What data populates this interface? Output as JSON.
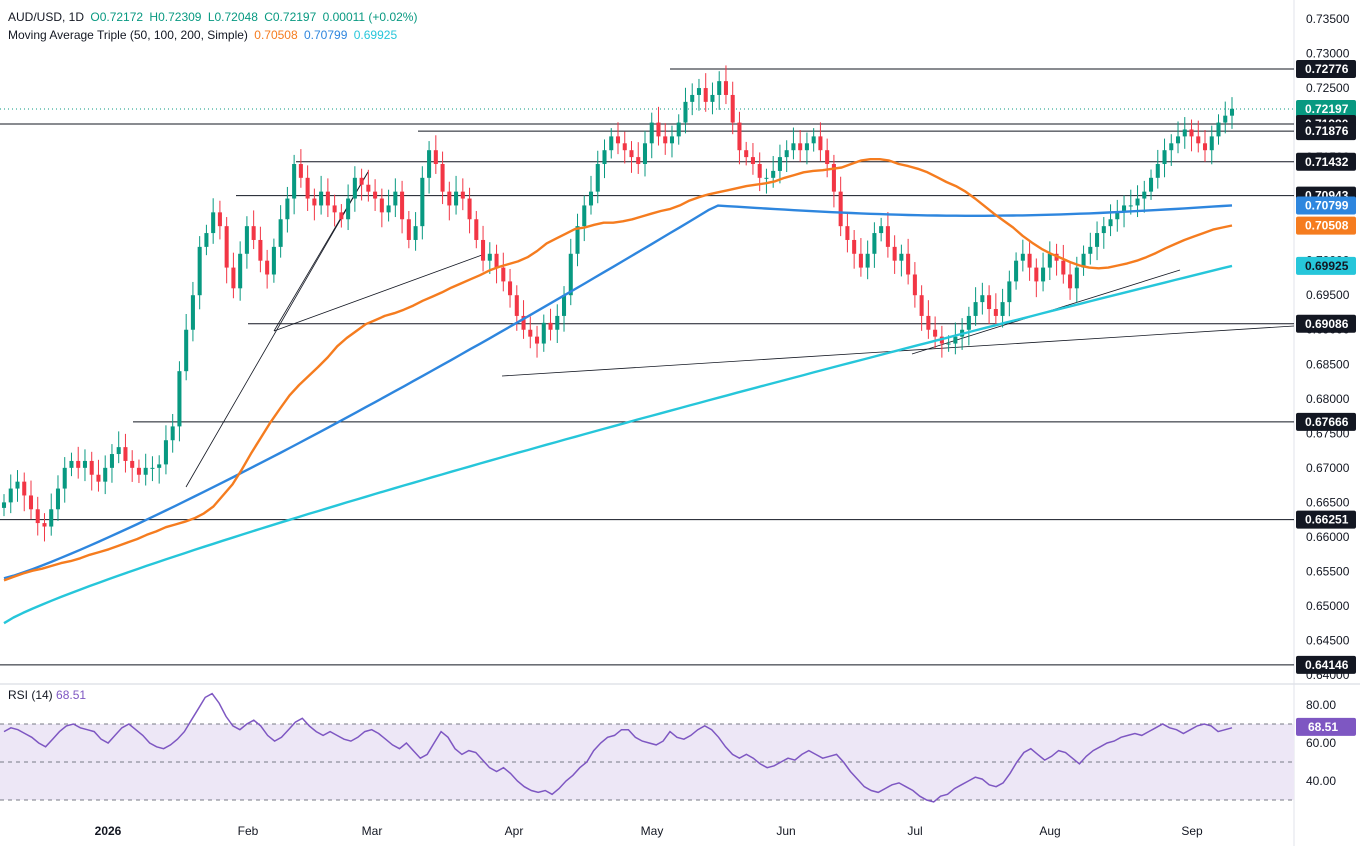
{
  "legend": {
    "symbol": "AUD/USD, 1D",
    "open": "O0.72172",
    "high": "H0.72309",
    "low": "L0.72048",
    "close": "C0.72197",
    "change": "0.00011 (+0.02%)",
    "ma_label": "Moving Average Triple (50, 100, 200, Simple)",
    "ma50": "0.70508",
    "ma100": "0.70799",
    "ma200": "0.69925",
    "rsi_label": "RSI (14)",
    "rsi_value": "68.51"
  },
  "colors": {
    "up": "#089981",
    "down": "#f23645",
    "ma50": "#f57c1f",
    "ma100": "#2e86de",
    "ma200": "#26c6da",
    "rsi": "#7e57c2",
    "rsi_band": "#ede7f6"
  },
  "chart_data": {
    "type": "candlestick",
    "title": "AUD/USD, 1D",
    "price_axis_ticks": [
      "0.73500",
      "0.73000",
      "0.72500",
      "0.72000",
      "0.71500",
      "0.71000",
      "0.70500",
      "0.70000",
      "0.69500",
      "0.69000",
      "0.68500",
      "0.68000",
      "0.67500",
      "0.67000",
      "0.66500",
      "0.66000",
      "0.65500",
      "0.65000",
      "0.64500",
      "0.64000"
    ],
    "x_tick_labels": [
      "2026",
      "Feb",
      "Mar",
      "Apr",
      "May",
      "Jun",
      "Jul",
      "Aug",
      "Sep"
    ],
    "ylim": [
      0.639,
      0.737
    ],
    "price_tags": [
      {
        "label": "0.72776",
        "value": 0.72776,
        "kind": "level"
      },
      {
        "label": "0.72197",
        "value": 0.72197,
        "kind": "last"
      },
      {
        "label": "0.71980",
        "value": 0.7198,
        "kind": "level"
      },
      {
        "label": "0.71876",
        "value": 0.71876,
        "kind": "level"
      },
      {
        "label": "0.71432",
        "value": 0.71432,
        "kind": "level"
      },
      {
        "label": "0.70943",
        "value": 0.70943,
        "kind": "level"
      },
      {
        "label": "0.70799",
        "value": 0.70799,
        "kind": "ma100"
      },
      {
        "label": "0.70508",
        "value": 0.70508,
        "kind": "ma50"
      },
      {
        "label": "0.69925",
        "value": 0.69925,
        "kind": "ma200"
      },
      {
        "label": "0.69086",
        "value": 0.69086,
        "kind": "level"
      },
      {
        "label": "0.67666",
        "value": 0.67666,
        "kind": "level"
      },
      {
        "label": "0.66251",
        "value": 0.66251,
        "kind": "level"
      },
      {
        "label": "0.64146",
        "value": 0.64146,
        "kind": "level"
      }
    ],
    "closes": [
      0.665,
      0.667,
      0.668,
      0.666,
      0.664,
      0.662,
      0.6615,
      0.664,
      0.667,
      0.67,
      0.671,
      0.67,
      0.671,
      0.669,
      0.668,
      0.67,
      0.672,
      0.673,
      0.671,
      0.67,
      0.669,
      0.67,
      0.67,
      0.6705,
      0.674,
      0.676,
      0.684,
      0.69,
      0.695,
      0.702,
      0.704,
      0.707,
      0.705,
      0.699,
      0.696,
      0.701,
      0.705,
      0.703,
      0.7,
      0.698,
      0.702,
      0.706,
      0.709,
      0.714,
      0.712,
      0.709,
      0.708,
      0.71,
      0.708,
      0.707,
      0.706,
      0.709,
      0.712,
      0.711,
      0.71,
      0.709,
      0.707,
      0.708,
      0.71,
      0.706,
      0.703,
      0.705,
      0.712,
      0.716,
      0.714,
      0.71,
      0.708,
      0.71,
      0.709,
      0.706,
      0.703,
      0.7,
      0.701,
      0.699,
      0.697,
      0.695,
      0.692,
      0.69,
      0.689,
      0.688,
      0.691,
      0.69,
      0.692,
      0.695,
      0.701,
      0.705,
      0.708,
      0.71,
      0.714,
      0.716,
      0.718,
      0.717,
      0.716,
      0.715,
      0.714,
      0.717,
      0.72,
      0.718,
      0.717,
      0.718,
      0.72,
      0.723,
      0.724,
      0.725,
      0.723,
      0.724,
      0.726,
      0.724,
      0.72,
      0.716,
      0.715,
      0.714,
      0.712,
      0.712,
      0.713,
      0.715,
      0.716,
      0.717,
      0.716,
      0.717,
      0.718,
      0.716,
      0.714,
      0.71,
      0.705,
      0.703,
      0.701,
      0.699,
      0.701,
      0.704,
      0.705,
      0.702,
      0.7,
      0.701,
      0.698,
      0.695,
      0.692,
      0.69,
      0.689,
      0.688,
      0.688,
      0.689,
      0.69,
      0.692,
      0.694,
      0.695,
      0.693,
      0.692,
      0.694,
      0.697,
      0.7,
      0.701,
      0.699,
      0.697,
      0.699,
      0.701,
      0.7,
      0.698,
      0.696,
      0.699,
      0.701,
      0.702,
      0.704,
      0.705,
      0.706,
      0.707,
      0.708,
      0.708,
      0.709,
      0.71,
      0.712,
      0.714,
      0.716,
      0.717,
      0.718,
      0.719,
      0.718,
      0.717,
      0.716,
      0.718,
      0.72,
      0.721,
      0.722
    ],
    "ma50": [
      0.6537,
      0.6542,
      0.6547,
      0.6551,
      0.6554,
      0.6558,
      0.6562,
      0.6565,
      0.6569,
      0.6574,
      0.6578,
      0.6582,
      0.6587,
      0.6592,
      0.6597,
      0.6603,
      0.6608,
      0.6614,
      0.6618,
      0.6622,
      0.6627,
      0.6634,
      0.6644,
      0.666,
      0.6676,
      0.6698,
      0.6722,
      0.6744,
      0.6766,
      0.6786,
      0.6805,
      0.682,
      0.6833,
      0.6846,
      0.686,
      0.6876,
      0.6888,
      0.6898,
      0.6908,
      0.6914,
      0.692,
      0.6924,
      0.6929,
      0.6935,
      0.6942,
      0.6948,
      0.6954,
      0.6961,
      0.6967,
      0.6973,
      0.6979,
      0.6986,
      0.6991,
      0.6995,
      0.6999,
      0.7005,
      0.7014,
      0.7025,
      0.7032,
      0.7039,
      0.7046,
      0.7048,
      0.7052,
      0.7055,
      0.7055,
      0.7057,
      0.706,
      0.7064,
      0.7068,
      0.7072,
      0.7075,
      0.708,
      0.7087,
      0.7092,
      0.7096,
      0.7099,
      0.7102,
      0.7105,
      0.7108,
      0.711,
      0.7112,
      0.7115,
      0.712,
      0.7124,
      0.7128,
      0.713,
      0.7131,
      0.7133,
      0.7135,
      0.714,
      0.7145,
      0.7147,
      0.7147,
      0.7145,
      0.714,
      0.7137,
      0.7133,
      0.7128,
      0.7121,
      0.7114,
      0.7108,
      0.71,
      0.709,
      0.7079,
      0.7068,
      0.7058,
      0.7048,
      0.7036,
      0.7026,
      0.7017,
      0.701,
      0.7004,
      0.6998,
      0.6993,
      0.699,
      0.6989,
      0.699,
      0.6993,
      0.6996,
      0.7,
      0.7005,
      0.7011,
      0.7018,
      0.7024,
      0.703,
      0.7035,
      0.704,
      0.7045,
      0.7048,
      0.7051
    ],
    "rsi_ylim": [
      20,
      90
    ],
    "rsi_ticks": [
      "80.00",
      "60.00",
      "40.00"
    ],
    "rsi_levels": [
      70,
      50,
      30
    ],
    "rsi": [
      66,
      68,
      67,
      65,
      63,
      60,
      58,
      62,
      66,
      69,
      70,
      68,
      67,
      66,
      62,
      60,
      64,
      68,
      70,
      67,
      64,
      60,
      58,
      57,
      59,
      62,
      66,
      72,
      78,
      84,
      86,
      81,
      74,
      69,
      67,
      70,
      72,
      69,
      64,
      61,
      63,
      67,
      71,
      73,
      69,
      66,
      64,
      66,
      64,
      62,
      61,
      63,
      66,
      67,
      65,
      62,
      59,
      57,
      60,
      56,
      52,
      54,
      60,
      66,
      63,
      57,
      54,
      56,
      55,
      51,
      47,
      45,
      47,
      44,
      40,
      37,
      35,
      34,
      35,
      33,
      36,
      40,
      43,
      47,
      50,
      56,
      60,
      63,
      64,
      67,
      67,
      63,
      61,
      60,
      59,
      61,
      66,
      63,
      62,
      64,
      67,
      69,
      67,
      63,
      58,
      54,
      52,
      54,
      52,
      49,
      47,
      48,
      50,
      52,
      51,
      54,
      56,
      54,
      52,
      53,
      54,
      50,
      45,
      41,
      37,
      35,
      34,
      36,
      38,
      39,
      37,
      35,
      32,
      30,
      29,
      32,
      33,
      36,
      38,
      40,
      42,
      41,
      38,
      37,
      39,
      44,
      50,
      55,
      57,
      54,
      51,
      53,
      56,
      55,
      52,
      49,
      53,
      56,
      58,
      60,
      61,
      63,
      64,
      65,
      64,
      66,
      68,
      70,
      68,
      67,
      65,
      67,
      69,
      70,
      69,
      66,
      67,
      68
    ]
  }
}
